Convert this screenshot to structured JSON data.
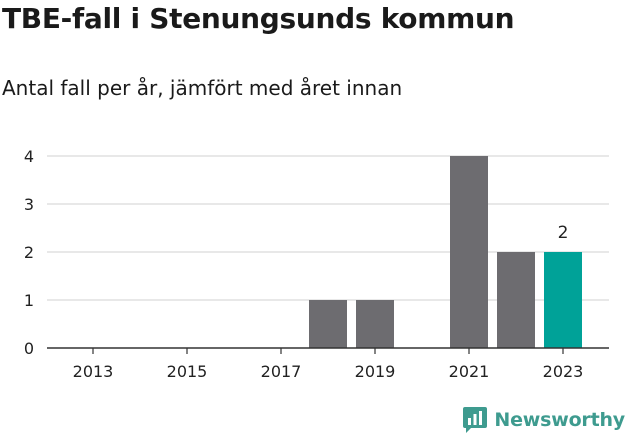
{
  "title": "TBE-fall i Stenungsunds kommun",
  "subtitle": "Antal fall per år, jämfört med året innan",
  "brand": {
    "name": "Newsworthy",
    "icon": "bar-chart-speech-icon",
    "color": "#3e9b8f"
  },
  "colors": {
    "previous": "#6d6c70",
    "current": "#00a298",
    "grid": "#d9d9d9",
    "axis": "#333333"
  },
  "chart_data": {
    "type": "bar",
    "categories": [
      "2013",
      "2014",
      "2015",
      "2016",
      "2017",
      "2018",
      "2019",
      "2020",
      "2021",
      "2022",
      "2023"
    ],
    "values": [
      0,
      0,
      0,
      0,
      0,
      1,
      1,
      0,
      4,
      2,
      2
    ],
    "highlight": "2023",
    "data_labels": [
      {
        "category": "2023",
        "text": "2"
      }
    ],
    "x_tick_labels": [
      "2013",
      "2015",
      "2017",
      "2019",
      "2021",
      "2023"
    ],
    "y_ticks": [
      0,
      1,
      2,
      3,
      4
    ],
    "ylim": [
      0,
      4
    ],
    "grid": true,
    "legend": "none"
  }
}
